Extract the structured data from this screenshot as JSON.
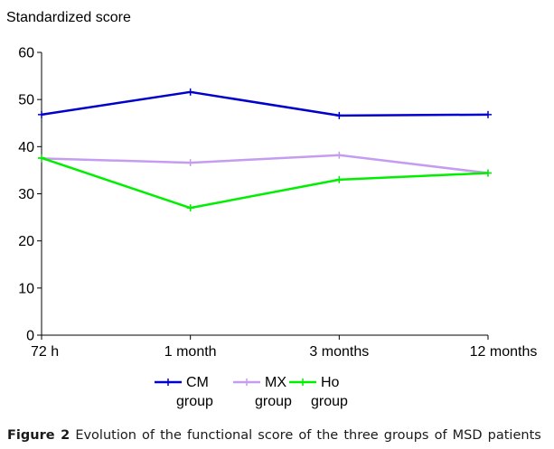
{
  "chart_data": {
    "type": "line",
    "ylabel": "Standardized score",
    "xlabel": "",
    "ylim": [
      0,
      60
    ],
    "y_ticks": [
      "0",
      "10",
      "20",
      "30",
      "40",
      "50",
      "60"
    ],
    "categories": [
      "72 h",
      "1 month",
      "3 months",
      "12 months"
    ],
    "series": [
      {
        "name_line1": "CM",
        "name_line2": "group",
        "color": "#0000cc",
        "values": [
          46.8,
          51.6,
          46.6,
          46.8
        ]
      },
      {
        "name_line1": "MX",
        "name_line2": "group",
        "color": "#c59cf0",
        "values": [
          37.5,
          36.6,
          38.2,
          34.4
        ]
      },
      {
        "name_line1": "Ho",
        "name_line2": "group",
        "color": "#00ee00",
        "values": [
          37.6,
          27.0,
          33.0,
          34.4
        ]
      }
    ],
    "legend_position": "bottom",
    "grid": false
  },
  "caption": {
    "label": "Figure 2",
    "text": "Evolution of the functional score of the three groups of MSD patients"
  }
}
